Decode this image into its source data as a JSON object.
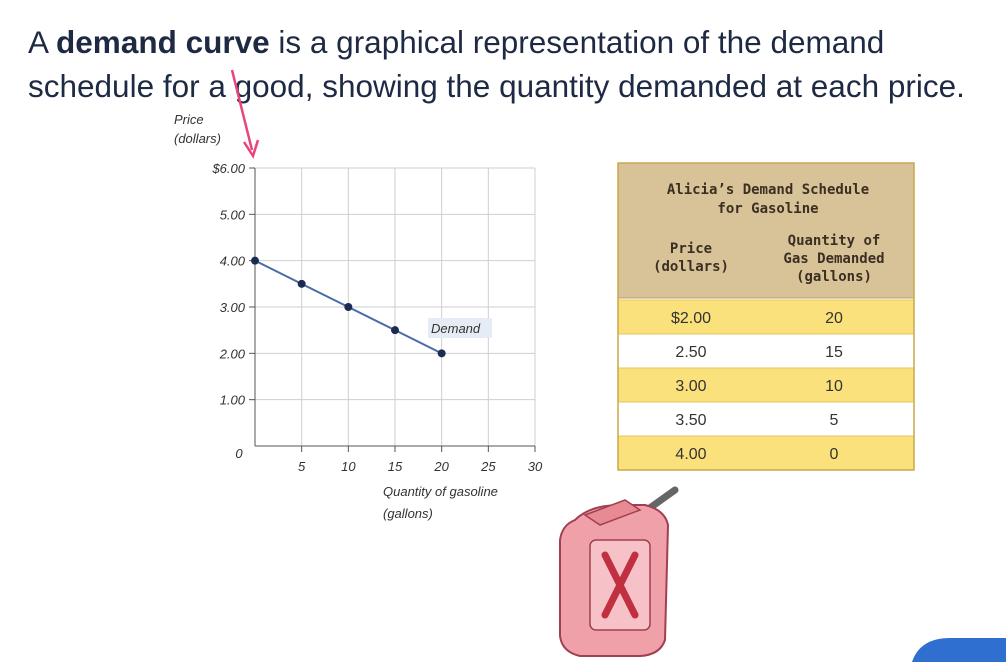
{
  "intro": {
    "before": "A",
    "bold": "demand curve",
    "after": "is a graphical representation of the demand schedule for a good, showing the quantity demanded at each price."
  },
  "chart_data": {
    "type": "line",
    "y_label": [
      "Price",
      "(dollars)"
    ],
    "x_label": [
      "Quantity of gasoline",
      "(gallons)"
    ],
    "x": [
      0,
      5,
      10,
      15,
      20
    ],
    "series": [
      {
        "name": "Demand",
        "color": "#1c2b52",
        "values": [
          4.0,
          3.5,
          3.0,
          2.5,
          2.0
        ]
      }
    ],
    "xlim": [
      0,
      30
    ],
    "xticks": [
      5,
      10,
      15,
      20,
      25,
      30
    ],
    "ylim": [
      0,
      6
    ],
    "yticks": [
      0,
      {
        "value": 1,
        "label": "1.00"
      },
      {
        "value": 2,
        "label": "2.00"
      },
      {
        "value": 3,
        "label": "3.00"
      },
      {
        "value": 4,
        "label": "4.00"
      },
      {
        "value": 5,
        "label": "5.00"
      },
      {
        "value": 6,
        "label": "$6.00"
      }
    ],
    "grid": true
  },
  "table": {
    "title": [
      "Alicia’s Demand Schedule",
      "for Gasoline"
    ],
    "columns": [
      [
        "Price",
        "(dollars)"
      ],
      [
        "Quantity of",
        "Gas Demanded",
        "(gallons)"
      ]
    ],
    "rows": [
      [
        "$2.00",
        "20"
      ],
      [
        "2.50",
        "15"
      ],
      [
        "3.00",
        "10"
      ],
      [
        "3.50",
        "5"
      ],
      [
        "4.00",
        "0"
      ]
    ]
  }
}
